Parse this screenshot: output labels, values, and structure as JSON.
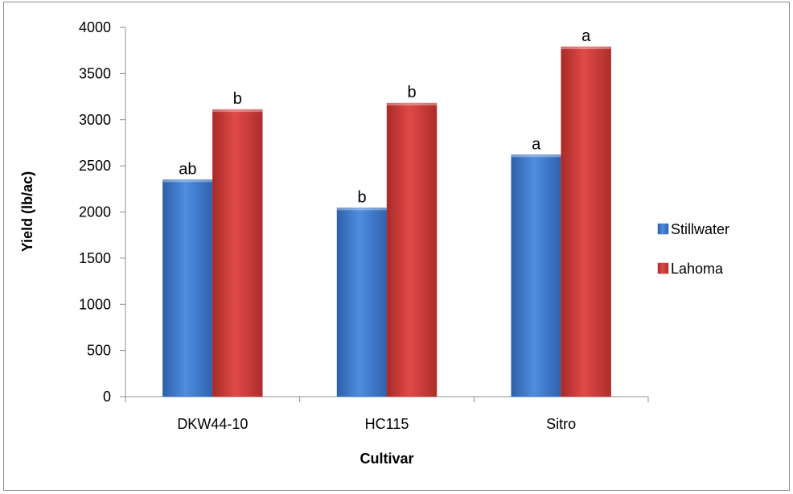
{
  "chart_data": {
    "type": "bar",
    "categories": [
      "DKW44-10",
      "HC115",
      "Sitro"
    ],
    "series": [
      {
        "name": "Stillwater",
        "values": [
          2350,
          2045,
          2620
        ],
        "labels": [
          "ab",
          "b",
          "a"
        ],
        "color": "#3b73c4"
      },
      {
        "name": "Lahoma",
        "values": [
          3110,
          3180,
          3790
        ],
        "labels": [
          "b",
          "b",
          "a"
        ],
        "color": "#c63a37"
      }
    ],
    "xlabel": "Cultivar",
    "ylabel": "Yield (lb/ac)",
    "ylim": [
      0,
      4000
    ],
    "yticks": [
      0,
      500,
      1000,
      1500,
      2000,
      2500,
      3000,
      3500,
      4000
    ],
    "grid": false,
    "legend": "right"
  }
}
